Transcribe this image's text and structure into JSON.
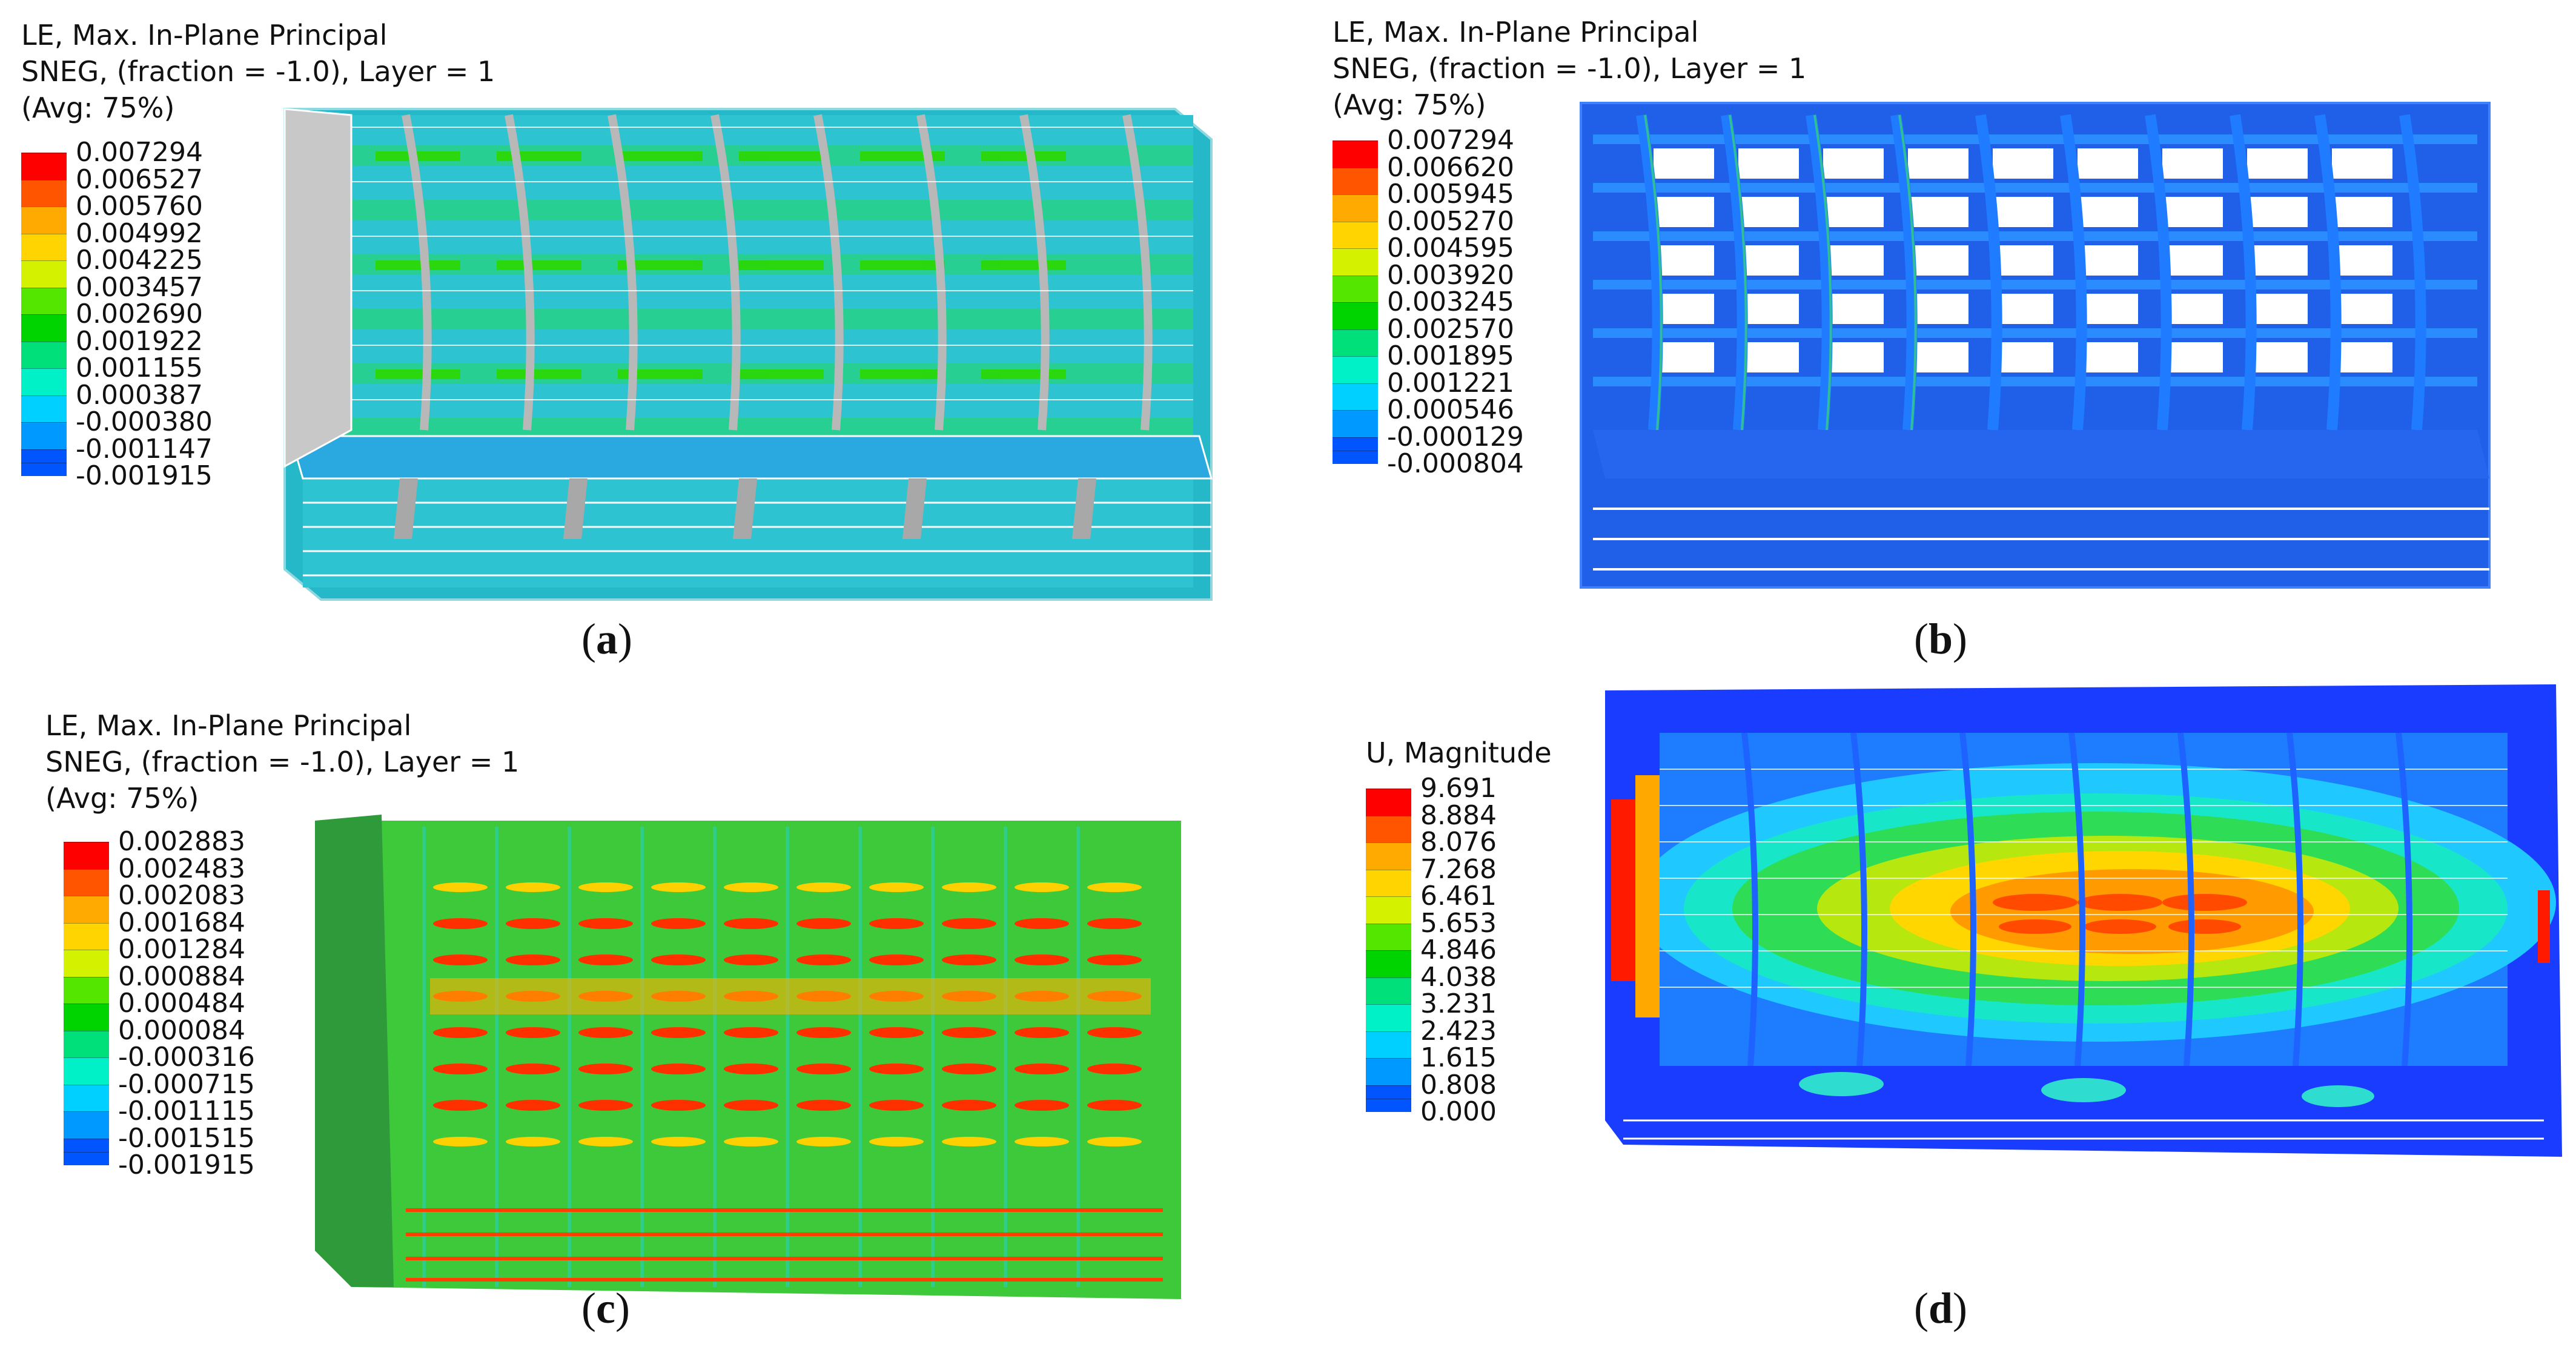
{
  "panels": [
    {
      "id": "a",
      "caption_letter": "a",
      "header": [
        "LE, Max. In-Plane Principal",
        "SNEG, (fraction = -1.0), Layer = 1",
        "(Avg: 75%)"
      ],
      "legend_values": [
        "0.007294",
        "0.006527",
        "0.005760",
        "0.004992",
        "0.004225",
        "0.003457",
        "0.002690",
        "0.001922",
        "0.001155",
        "0.000387",
        "-0.000380",
        "-0.001147",
        "-0.001915"
      ]
    },
    {
      "id": "b",
      "caption_letter": "b",
      "header": [
        "LE, Max. In-Plane Principal",
        "SNEG, (fraction = -1.0), Layer = 1",
        "(Avg: 75%)"
      ],
      "legend_values": [
        "0.007294",
        "0.006620",
        "0.005945",
        "0.005270",
        "0.004595",
        "0.003920",
        "0.003245",
        "0.002570",
        "0.001895",
        "0.001221",
        "0.000546",
        "-0.000129",
        "-0.000804"
      ]
    },
    {
      "id": "c",
      "caption_letter": "c",
      "header": [
        "LE, Max. In-Plane Principal",
        "SNEG, (fraction = -1.0), Layer = 1",
        "(Avg: 75%)"
      ],
      "legend_values": [
        "0.002883",
        "0.002483",
        "0.002083",
        "0.001684",
        "0.001284",
        "0.000884",
        "0.000484",
        "0.000084",
        "-0.000316",
        "-0.000715",
        "-0.001115",
        "-0.001515",
        "-0.001915"
      ]
    },
    {
      "id": "d",
      "caption_letter": "d",
      "header": [
        "U, Magnitude"
      ],
      "legend_values": [
        "9.691",
        "8.884",
        "8.076",
        "7.268",
        "6.461",
        "5.653",
        "4.846",
        "4.038",
        "3.231",
        "2.423",
        "1.615",
        "0.808",
        "0.000"
      ]
    }
  ],
  "colormap": [
    "#ff0000",
    "#ff5500",
    "#ffaa00",
    "#ffd400",
    "#d4f200",
    "#55e600",
    "#00d400",
    "#00e07a",
    "#00f0c8",
    "#00d0ff",
    "#0099ff",
    "#0055ff",
    "#0000ff"
  ]
}
